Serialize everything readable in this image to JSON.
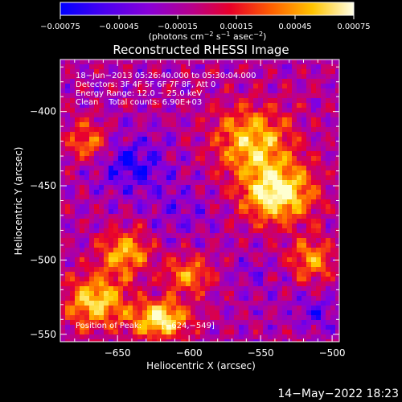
{
  "chart_data": {
    "type": "heatmap",
    "title": "Reconstructed RHESSI Image",
    "xlabel": "Heliocentric X (arcsec)",
    "ylabel": "Heliocentric Y (arcsec)",
    "xlim": [
      -690,
      -495
    ],
    "ylim": [
      -555,
      -365
    ],
    "xticks": [
      -650,
      -600,
      -550,
      -500
    ],
    "yticks": [
      -400,
      -450,
      -500,
      -550
    ],
    "xtick_labels": [
      "−650",
      "−600",
      "−550",
      "−500"
    ],
    "ytick_labels": [
      "−400",
      "−450",
      "−500",
      "−550"
    ],
    "colorbar": {
      "range": [
        -0.00075,
        0.00075
      ],
      "ticks": [
        -0.00075,
        -0.00045,
        -0.00015,
        0.00015,
        0.00045,
        0.00075
      ],
      "tick_labels": [
        "−0.00075",
        "−0.00045",
        "−0.00015",
        "0.00015",
        "0.00045",
        "0.00075"
      ],
      "colors": [
        "#0000ff",
        "#7a00e8",
        "#b3009c",
        "#e8002e",
        "#ff6b00",
        "#ffd000",
        "#ffffd0"
      ]
    },
    "info_lines": [
      "18−Jun−2013 05:26:40.000 to 05:30:04.000",
      "Detectors: 3F 4F 5F 6F 7F 8F, Att 0",
      "Energy Range: 12.0 − 25.0 keV",
      "Clean    Total counts: 6.90E+03"
    ],
    "peak_label": "Position of Peak:",
    "peak_value": "[−624,−549]",
    "peak": [
      -624,
      -549
    ],
    "hot_regions": [
      {
        "x": -538,
        "y": -455,
        "level": 1.0,
        "rx": 28,
        "ry": 22
      },
      {
        "x": -620,
        "y": -540,
        "level": 0.95,
        "rx": 22,
        "ry": 14
      },
      {
        "x": -665,
        "y": -528,
        "level": 0.75,
        "rx": 24,
        "ry": 20
      },
      {
        "x": -555,
        "y": -420,
        "level": 0.7,
        "rx": 30,
        "ry": 26
      },
      {
        "x": -645,
        "y": -495,
        "level": 0.55,
        "rx": 20,
        "ry": 18
      },
      {
        "x": -515,
        "y": -500,
        "level": 0.45,
        "rx": 18,
        "ry": 16
      },
      {
        "x": -600,
        "y": -510,
        "level": 0.45,
        "rx": 18,
        "ry": 14
      },
      {
        "x": -670,
        "y": -420,
        "level": 0.4,
        "rx": 16,
        "ry": 16
      }
    ],
    "cold_regions": [
      {
        "x": -640,
        "y": -435,
        "level": -0.85,
        "rx": 30,
        "ry": 22
      },
      {
        "x": -510,
        "y": -535,
        "level": -0.7,
        "rx": 16,
        "ry": 14
      },
      {
        "x": -605,
        "y": -465,
        "level": -0.6,
        "rx": 28,
        "ry": 20
      },
      {
        "x": -555,
        "y": -510,
        "level": -0.55,
        "rx": 20,
        "ry": 14
      }
    ]
  },
  "footer": {
    "date": "14−May−2022 18:23"
  }
}
